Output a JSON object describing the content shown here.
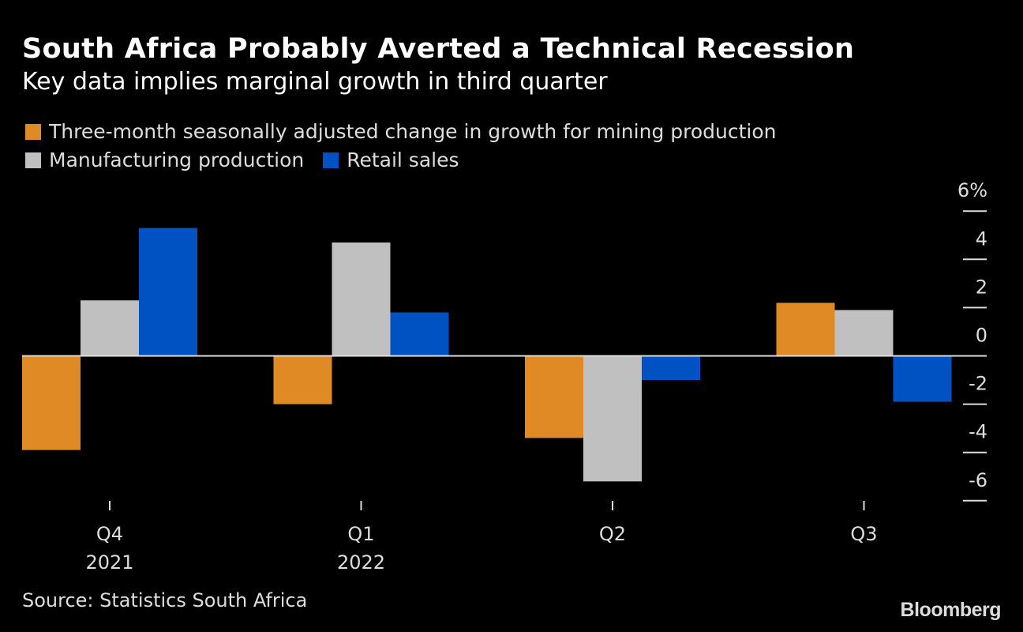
{
  "header": {
    "title": "South Africa Probably Averted a Technical Recession",
    "subtitle": "Key data implies marginal growth in third quarter"
  },
  "footer": {
    "source": "Source: Statistics South Africa",
    "logo": "Bloomberg"
  },
  "chart_data": {
    "type": "bar",
    "title": "South Africa Probably Averted a Technical Recession",
    "subtitle": "Key data implies marginal growth in third quarter",
    "categories": [
      "Q4\n2021",
      "Q1\n2022",
      "Q2",
      "Q3"
    ],
    "category_labels": [
      [
        "Q4",
        "2021"
      ],
      [
        "Q1",
        "2022"
      ],
      [
        "Q2",
        ""
      ],
      [
        "Q3",
        ""
      ]
    ],
    "series": [
      {
        "name": "Three-month seasonally adjusted change in growth for mining production",
        "color": "#e08a26",
        "values": [
          -3.9,
          -2.0,
          -3.4,
          2.2
        ]
      },
      {
        "name": "Manufacturing production",
        "color": "#c0c0c0",
        "values": [
          2.3,
          4.7,
          -5.2,
          1.9
        ]
      },
      {
        "name": "Retail sales",
        "color": "#0052c2",
        "values": [
          5.3,
          1.8,
          -1.0,
          -1.9
        ]
      }
    ],
    "ylim": [
      -6,
      6
    ],
    "yticks": [
      6,
      4,
      2,
      0,
      -2,
      -4,
      -6
    ],
    "ytick_labels": [
      "6%",
      "4",
      "2",
      "0",
      "-2",
      "-4",
      "-6"
    ],
    "axis_position": "right",
    "legend": "top-left",
    "grid": false
  }
}
